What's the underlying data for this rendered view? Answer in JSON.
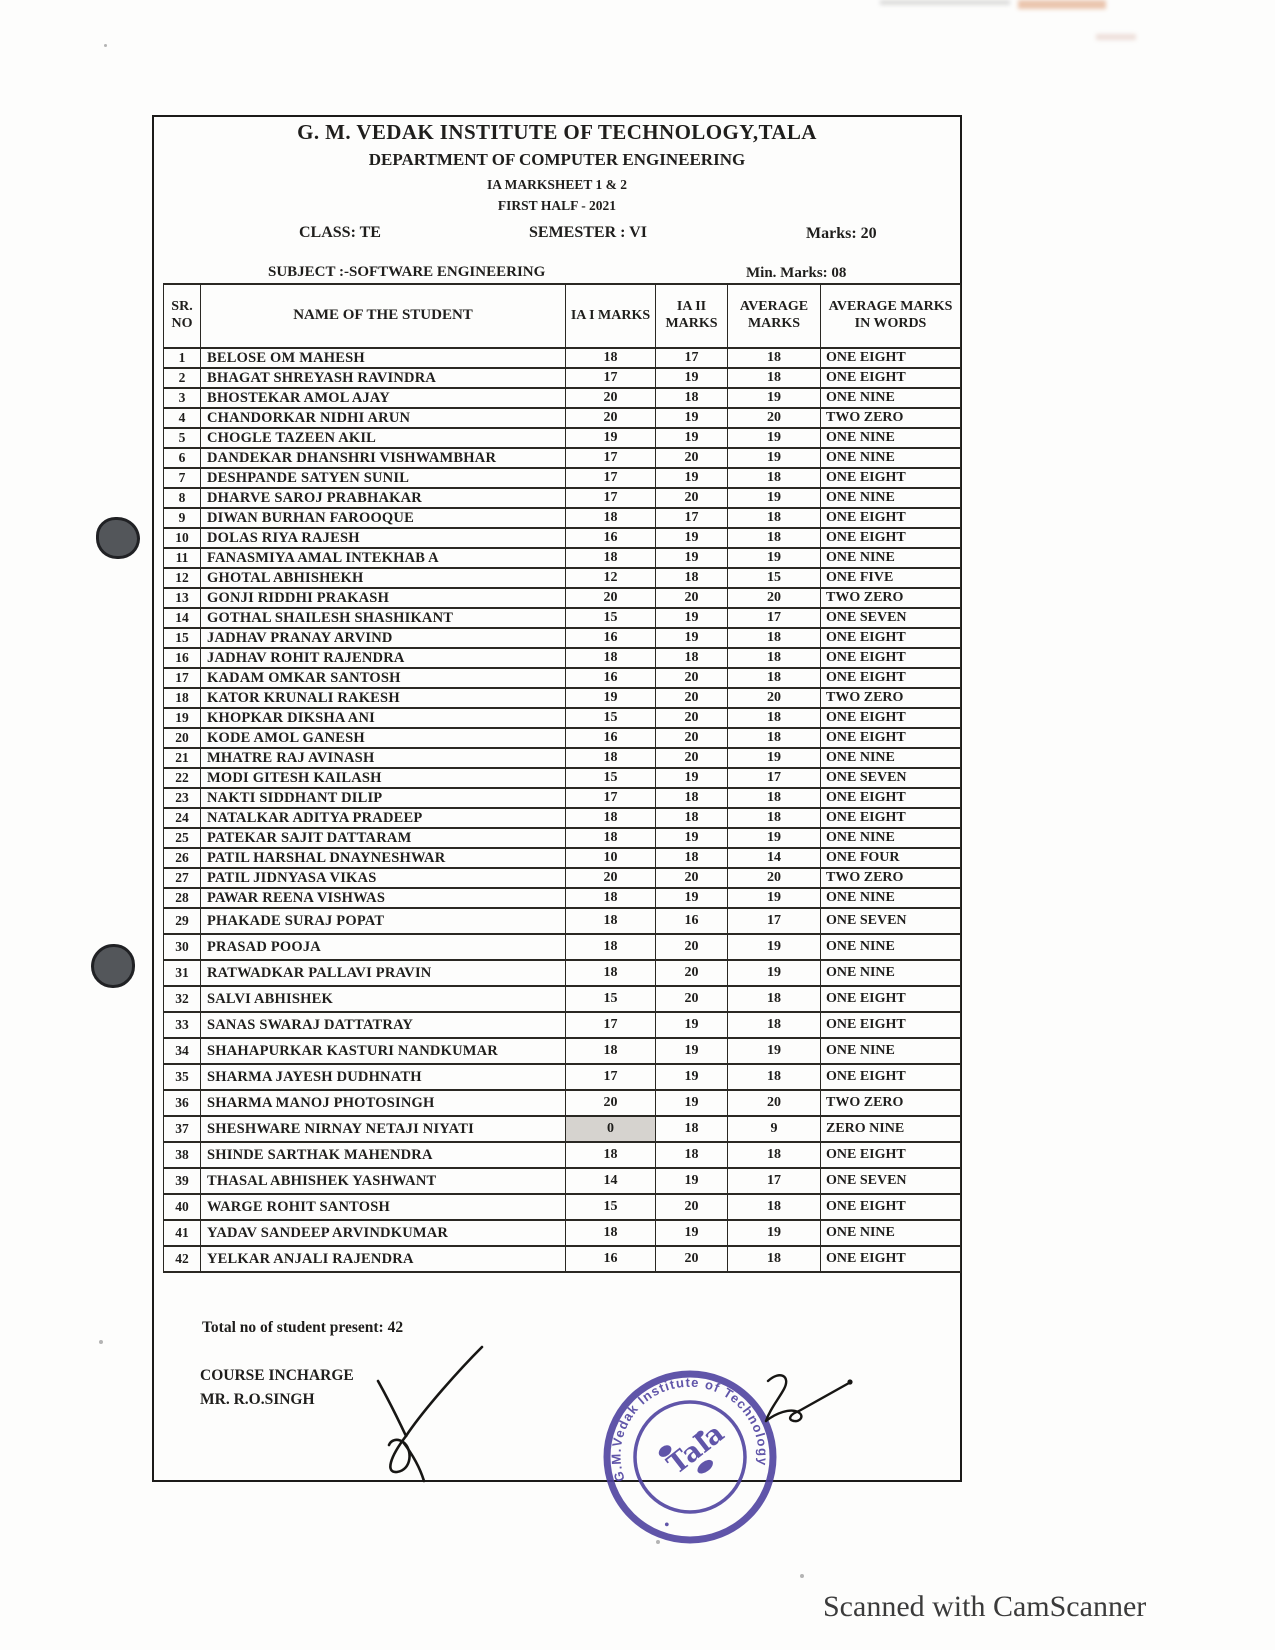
{
  "page": {
    "watermark": "Scanned with CamScanner"
  },
  "header": {
    "institute": "G. M. VEDAK INSTITUTE OF TECHNOLOGY,TALA",
    "department": "DEPARTMENT OF COMPUTER ENGINEERING",
    "sheet": "IA MARKSHEET 1 & 2",
    "term": "FIRST HALF - 2021",
    "class": "CLASS:  TE",
    "semester": "SEMESTER :   VI",
    "marks": "Marks: 20",
    "subject": "SUBJECT :-SOFTWARE ENGINEERING",
    "min_marks": "Min. Marks: 08"
  },
  "table": {
    "headers": [
      "SR. NO",
      "NAME OF THE STUDENT",
      "IA I MARKS",
      "IA II MARKS",
      "AVERAGE MARKS",
      "AVERAGE MARKS IN WORDS"
    ],
    "rows": [
      [
        1,
        "BELOSE OM MAHESH",
        "18",
        "17",
        "18",
        "ONE EIGHT"
      ],
      [
        2,
        "BHAGAT SHREYASH RAVINDRA",
        "17",
        "19",
        "18",
        "ONE EIGHT"
      ],
      [
        3,
        "BHOSTEKAR AMOL AJAY",
        "20",
        "18",
        "19",
        "ONE NINE"
      ],
      [
        4,
        "CHANDORKAR NIDHI ARUN",
        "20",
        "19",
        "20",
        "TWO ZERO"
      ],
      [
        5,
        "CHOGLE TAZEEN AKIL",
        "19",
        "19",
        "19",
        "ONE NINE"
      ],
      [
        6,
        "DANDEKAR DHANSHRI VISHWAMBHAR",
        "17",
        "20",
        "19",
        "ONE NINE"
      ],
      [
        7,
        "DESHPANDE SATYEN SUNIL",
        "17",
        "19",
        "18",
        "ONE EIGHT"
      ],
      [
        8,
        "DHARVE SAROJ PRABHAKAR",
        "17",
        "20",
        "19",
        "ONE NINE"
      ],
      [
        9,
        "DIWAN BURHAN FAROOQUE",
        "18",
        "17",
        "18",
        "ONE EIGHT"
      ],
      [
        10,
        "DOLAS RIYA RAJESH",
        "16",
        "19",
        "18",
        "ONE EIGHT"
      ],
      [
        11,
        "FANASMIYA AMAL INTEKHAB A",
        "18",
        "19",
        "19",
        "ONE NINE"
      ],
      [
        12,
        "GHOTAL ABHISHEKH",
        "12",
        "18",
        "15",
        "ONE FIVE"
      ],
      [
        13,
        "GONJI RIDDHI PRAKASH",
        "20",
        "20",
        "20",
        "TWO ZERO"
      ],
      [
        14,
        "GOTHAL SHAILESH SHASHIKANT",
        "15",
        "19",
        "17",
        "ONE SEVEN"
      ],
      [
        15,
        "JADHAV PRANAY ARVIND",
        "16",
        "19",
        "18",
        "ONE EIGHT"
      ],
      [
        16,
        "JADHAV ROHIT RAJENDRA",
        "18",
        "18",
        "18",
        "ONE EIGHT"
      ],
      [
        17,
        "KADAM OMKAR SANTOSH",
        "16",
        "20",
        "18",
        "ONE EIGHT"
      ],
      [
        18,
        "KATOR KRUNALI RAKESH",
        "19",
        "20",
        "20",
        "TWO ZERO"
      ],
      [
        19,
        "KHOPKAR DIKSHA ANI",
        "15",
        "20",
        "18",
        "ONE EIGHT"
      ],
      [
        20,
        "KODE AMOL GANESH",
        "16",
        "20",
        "18",
        "ONE EIGHT"
      ],
      [
        21,
        "MHATRE RAJ AVINASH",
        "18",
        "20",
        "19",
        "ONE NINE"
      ],
      [
        22,
        "MODI GITESH KAILASH",
        "15",
        "19",
        "17",
        "ONE SEVEN"
      ],
      [
        23,
        "NAKTI SIDDHANT DILIP",
        "17",
        "18",
        "18",
        "ONE EIGHT"
      ],
      [
        24,
        "NATALKAR ADITYA PRADEEP",
        "18",
        "18",
        "18",
        "ONE EIGHT"
      ],
      [
        25,
        "PATEKAR SAJIT DATTARAM",
        "18",
        "19",
        "19",
        "ONE NINE"
      ],
      [
        26,
        "PATIL HARSHAL DNAYNESHWAR",
        "10",
        "18",
        "14",
        "ONE FOUR"
      ],
      [
        27,
        "PATIL JIDNYASA VIKAS",
        "20",
        "20",
        "20",
        "TWO ZERO"
      ],
      [
        28,
        "PAWAR REENA VISHWAS",
        "18",
        "19",
        "19",
        "ONE NINE"
      ],
      [
        29,
        "PHAKADE SURAJ POPAT",
        "18",
        "16",
        "17",
        "ONE SEVEN"
      ],
      [
        30,
        "PRASAD POOJA",
        "18",
        "20",
        "19",
        "ONE NINE"
      ],
      [
        31,
        "RATWADKAR PALLAVI PRAVIN",
        "18",
        "20",
        "19",
        "ONE NINE"
      ],
      [
        32,
        "SALVI ABHISHEK",
        "15",
        "20",
        "18",
        "ONE EIGHT"
      ],
      [
        33,
        "SANAS SWARAJ DATTATRAY",
        "17",
        "19",
        "18",
        "ONE EIGHT"
      ],
      [
        34,
        "SHAHAPURKAR KASTURI NANDKUMAR",
        "18",
        "19",
        "19",
        "ONE NINE"
      ],
      [
        35,
        "SHARMA JAYESH DUDHNATH",
        "17",
        "19",
        "18",
        "ONE EIGHT"
      ],
      [
        36,
        "SHARMA MANOJ PHOTOSINGH",
        "20",
        "19",
        "20",
        "TWO ZERO"
      ],
      [
        37,
        "SHESHWARE NIRNAY NETAJI NIYATI",
        "0",
        "18",
        "9",
        "ZERO NINE"
      ],
      [
        38,
        "SHINDE SARTHAK MAHENDRA",
        "18",
        "18",
        "18",
        "ONE EIGHT"
      ],
      [
        39,
        "THASAL ABHISHEK YASHWANT",
        "14",
        "19",
        "17",
        "ONE SEVEN"
      ],
      [
        40,
        "WARGE ROHIT SANTOSH",
        "15",
        "20",
        "18",
        "ONE EIGHT"
      ],
      [
        41,
        "YADAV SANDEEP ARVINDKUMAR",
        "18",
        "19",
        "19",
        "ONE NINE"
      ],
      [
        42,
        "YELKAR ANJALI RAJENDRA",
        "16",
        "20",
        "18",
        "ONE EIGHT"
      ]
    ],
    "highlight": {
      "sr_no": 37,
      "col_index": 2
    },
    "tall_from_sr_no": 29
  },
  "footer": {
    "total": "Total no of student present: 42",
    "incharge_title": "COURSE INCHARGE",
    "incharge_name": "MR. R.O.SINGH"
  },
  "stamp": {
    "ring_text": "G.M.Vedak Institute of Technology",
    "inner_text": "Tala",
    "bullet": "•",
    "color": "#4b3e9e"
  },
  "colors": {
    "ink": "#1f1e1c",
    "highlight_cell": "#d6d3cf",
    "stamp": "#4b3e9e"
  }
}
